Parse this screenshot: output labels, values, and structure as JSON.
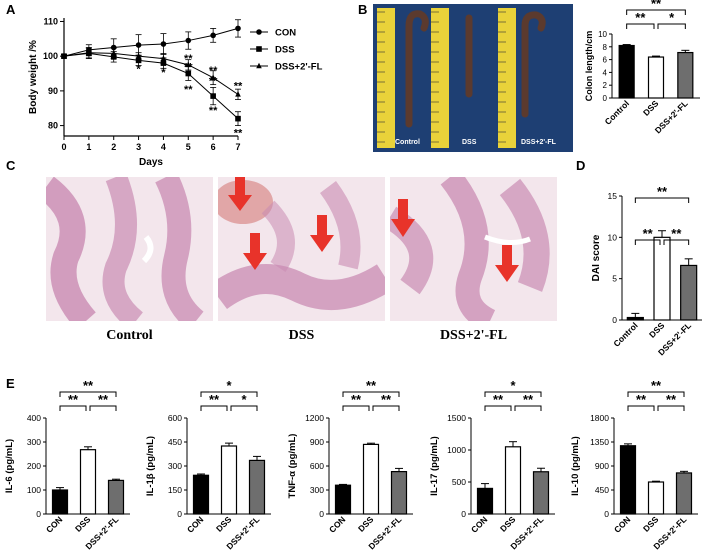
{
  "panel_labels": {
    "a": "A",
    "b": "B",
    "c": "C",
    "d": "D",
    "e": "E"
  },
  "panel_c": {
    "captions": [
      "Control",
      "DSS",
      "DSS+2'-FL"
    ]
  },
  "panel_b_photo": {
    "labels": [
      "Control",
      "DSS",
      "DSS+2'-FL"
    ]
  },
  "colors": {
    "black": "#000000",
    "white": "#ffffff",
    "gray": "#6e6e6e",
    "arrow": "#e8332a",
    "photo_bg": "#1e3f73",
    "tape": "#e9d23a",
    "histo_bg": "#f3e6ec",
    "tissue": "#c98bb3"
  },
  "chart_data": [
    {
      "id": "weight",
      "type": "line",
      "xlabel": "Days",
      "ylabel": "Body weight /%",
      "xlim": [
        0,
        7
      ],
      "ylim": [
        77,
        111
      ],
      "xticks": [
        0,
        1,
        2,
        3,
        4,
        5,
        6,
        7
      ],
      "yticks": [
        80,
        90,
        100,
        110
      ],
      "x": [
        0,
        1,
        2,
        3,
        4,
        5,
        6,
        7
      ],
      "series": [
        {
          "name": "CON",
          "marker": "circle",
          "values": [
            100,
            101.8,
            102.5,
            103.2,
            103.5,
            104.5,
            106,
            108
          ],
          "err": [
            0.5,
            1.5,
            2.5,
            3,
            3,
            2.5,
            2,
            2.5
          ]
        },
        {
          "name": "DSS",
          "marker": "square",
          "values": [
            100,
            100.8,
            99.8,
            98.8,
            98,
            95,
            88.5,
            82
          ],
          "err": [
            0.5,
            1.5,
            1.5,
            1.5,
            1.5,
            2,
            2.5,
            2
          ]
        },
        {
          "name": "DSS+2'-FL",
          "marker": "triangle",
          "values": [
            100,
            101,
            100.8,
            100,
            99.3,
            97.5,
            93.8,
            89
          ],
          "err": [
            0.5,
            1.5,
            1.5,
            1,
            1.5,
            1.5,
            2,
            1.5
          ]
        }
      ],
      "annotations": [
        {
          "x": 3,
          "y": 96.5,
          "text": "*"
        },
        {
          "x": 4,
          "y": 95.5,
          "text": "*"
        },
        {
          "x": 5,
          "y": 99.5,
          "text": "**"
        },
        {
          "x": 5,
          "y": 97.0,
          "text": "**"
        },
        {
          "x": 5,
          "y": 90.5,
          "text": "**"
        },
        {
          "x": 6,
          "y": 96.0,
          "text": "**"
        },
        {
          "x": 6,
          "y": 93.0,
          "text": "**"
        },
        {
          "x": 6,
          "y": 84.5,
          "text": "**"
        },
        {
          "x": 7,
          "y": 91.5,
          "text": "**"
        },
        {
          "x": 7,
          "y": 78.0,
          "text": "**"
        }
      ]
    },
    {
      "id": "colon_length",
      "type": "bar",
      "ylabel": "Colon length/cm",
      "ylim": [
        0,
        10
      ],
      "yticks": [
        0,
        2,
        4,
        6,
        8,
        10
      ],
      "categories": [
        "Control",
        "DSS",
        "DSS+2'-FL"
      ],
      "values": [
        8.2,
        6.4,
        7.1
      ],
      "err": [
        0.15,
        0.15,
        0.35
      ],
      "significance": [
        {
          "from": 0,
          "to": 1,
          "text": "**"
        },
        {
          "from": 1,
          "to": 2,
          "text": "*"
        },
        {
          "from": 0,
          "to": 2,
          "text": "**"
        }
      ]
    },
    {
      "id": "dai",
      "type": "bar",
      "ylabel": "DAI score",
      "ylim": [
        0,
        15
      ],
      "yticks": [
        0,
        5,
        10,
        15
      ],
      "categories": [
        "Control",
        "DSS",
        "DSS+2'-FL"
      ],
      "values": [
        0.3,
        10,
        6.6
      ],
      "err": [
        0.5,
        0.8,
        0.8
      ],
      "significance": [
        {
          "from": 0,
          "to": 1,
          "text": "**"
        },
        {
          "from": 1,
          "to": 2,
          "text": "**"
        },
        {
          "from": 0,
          "to": 2,
          "text": "**"
        }
      ]
    },
    {
      "id": "il6",
      "type": "bar",
      "ylabel": "IL-6 (pg/mL)",
      "ylim": [
        0,
        400
      ],
      "yticks": [
        0,
        100,
        200,
        300,
        400
      ],
      "categories": [
        "CON",
        "DSS",
        "DSS+2'-FL"
      ],
      "values": [
        100,
        268,
        140
      ],
      "err": [
        10,
        12,
        5
      ],
      "significance": [
        {
          "from": 0,
          "to": 1,
          "text": "**"
        },
        {
          "from": 1,
          "to": 2,
          "text": "**"
        },
        {
          "from": 0,
          "to": 2,
          "text": "**"
        }
      ]
    },
    {
      "id": "il1b",
      "type": "bar",
      "ylabel": "IL-1β (pg/mL)",
      "ylim": [
        0,
        600
      ],
      "yticks": [
        0,
        150,
        300,
        450,
        600
      ],
      "categories": [
        "CON",
        "DSS",
        "DSS+2'-FL"
      ],
      "values": [
        242,
        425,
        335
      ],
      "err": [
        8,
        18,
        25
      ],
      "significance": [
        {
          "from": 0,
          "to": 1,
          "text": "**"
        },
        {
          "from": 1,
          "to": 2,
          "text": "*"
        },
        {
          "from": 0,
          "to": 2,
          "text": "*"
        }
      ]
    },
    {
      "id": "tnfa",
      "type": "bar",
      "ylabel": "TNF-α (pg/mL)",
      "ylim": [
        0,
        1200
      ],
      "yticks": [
        0,
        300,
        600,
        900,
        1200
      ],
      "categories": [
        "CON",
        "DSS",
        "DSS+2'-FL"
      ],
      "values": [
        360,
        870,
        530
      ],
      "err": [
        10,
        15,
        40
      ],
      "significance": [
        {
          "from": 0,
          "to": 1,
          "text": "**"
        },
        {
          "from": 1,
          "to": 2,
          "text": "**"
        },
        {
          "from": 0,
          "to": 2,
          "text": "**"
        }
      ]
    },
    {
      "id": "il17",
      "type": "bar",
      "ylabel": "IL-17 (pg/mL)",
      "ylim": [
        0,
        1500
      ],
      "yticks": [
        0,
        500,
        1000,
        1500
      ],
      "categories": [
        "CON",
        "DSS",
        "DSS+2'-FL"
      ],
      "values": [
        400,
        1050,
        660
      ],
      "err": [
        75,
        80,
        55
      ],
      "significance": [
        {
          "from": 0,
          "to": 1,
          "text": "**"
        },
        {
          "from": 1,
          "to": 2,
          "text": "**"
        },
        {
          "from": 0,
          "to": 2,
          "text": "*"
        }
      ]
    },
    {
      "id": "il10",
      "type": "bar",
      "ylabel": "IL-10 (pg/mL)",
      "ylim": [
        0,
        1800
      ],
      "yticks": [
        0,
        450,
        900,
        1350,
        1800
      ],
      "categories": [
        "CON",
        "DSS",
        "DSS+2'-FL"
      ],
      "values": [
        1280,
        600,
        770
      ],
      "err": [
        35,
        15,
        30
      ],
      "significance": [
        {
          "from": 0,
          "to": 1,
          "text": "**"
        },
        {
          "from": 1,
          "to": 2,
          "text": "**"
        },
        {
          "from": 0,
          "to": 2,
          "text": "**"
        }
      ]
    }
  ]
}
